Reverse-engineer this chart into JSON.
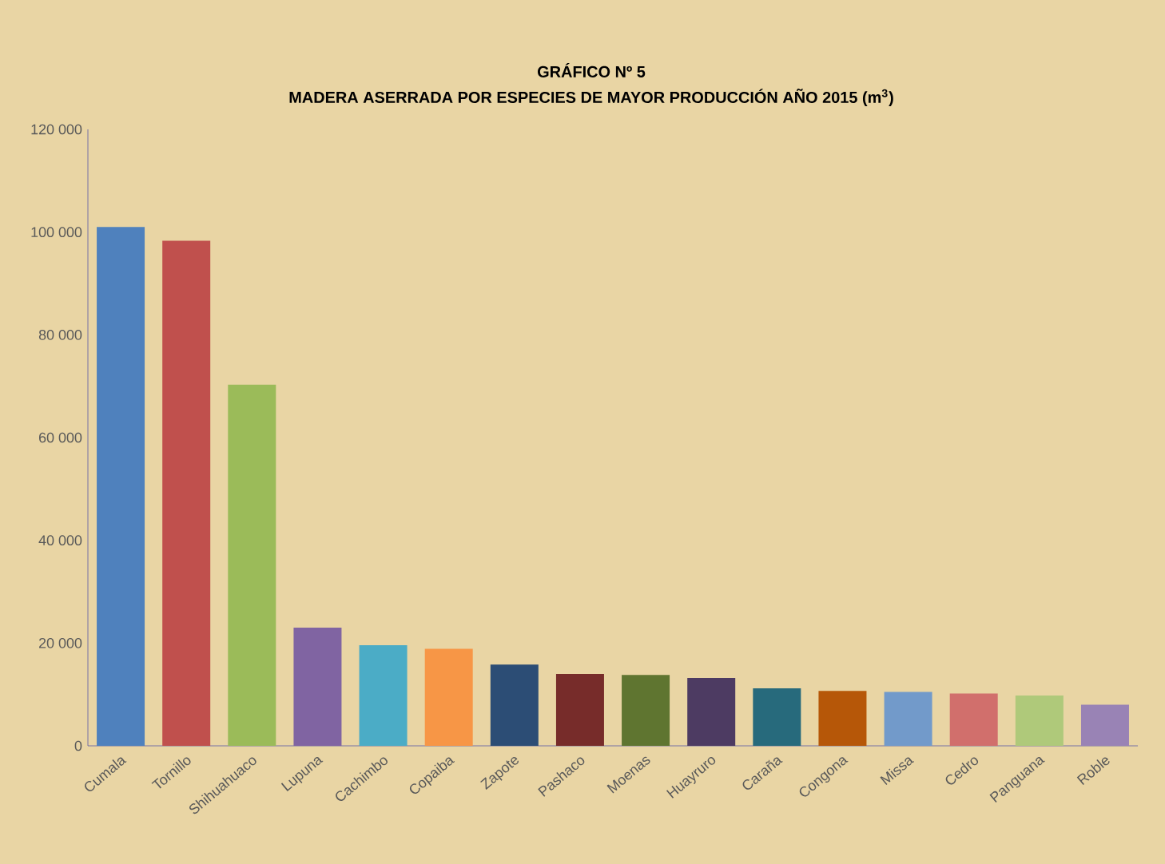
{
  "chart_data": {
    "type": "bar",
    "title": "GRÁFICO Nº 5",
    "subtitle": "MADERA ASERRADA POR ESPECIES DE MAYOR PRODUCCIÓN AÑO 2015 (m$^{3}$)",
    "categories": [
      "Cumala",
      "Tornillo",
      "Shihuahuaco",
      "Lupuna",
      "Cachimbo",
      "Copaiba",
      "Zapote",
      "Pashaco",
      "Moenas",
      "Huayruro",
      "Caraña",
      "Congona",
      "Missa",
      "Cedro",
      "Panguana",
      "Roble"
    ],
    "values": [
      101000,
      98300,
      70300,
      23000,
      19600,
      18900,
      15800,
      14000,
      13800,
      13200,
      11200,
      10700,
      10500,
      10200,
      9800,
      8000
    ],
    "colors": [
      "#4f81bd",
      "#c0504d",
      "#9bbb59",
      "#8064a2",
      "#4bacc6",
      "#f79646",
      "#2c4d75",
      "#772c2a",
      "#5f7530",
      "#4d3b62",
      "#276a7c",
      "#b65708",
      "#729aca",
      "#d16f6c",
      "#afc97a",
      "#9983b5"
    ],
    "ylim": [
      0,
      120000
    ],
    "yticks": [
      {
        "value": 0,
        "label": "0"
      },
      {
        "value": 20000,
        "label": "20 000"
      },
      {
        "value": 40000,
        "label": "40 000"
      },
      {
        "value": 60000,
        "label": "60 000"
      },
      {
        "value": 80000,
        "label": "80 000"
      },
      {
        "value": 100000,
        "label": "100 000"
      },
      {
        "value": 120000,
        "label": "120 000"
      }
    ]
  }
}
